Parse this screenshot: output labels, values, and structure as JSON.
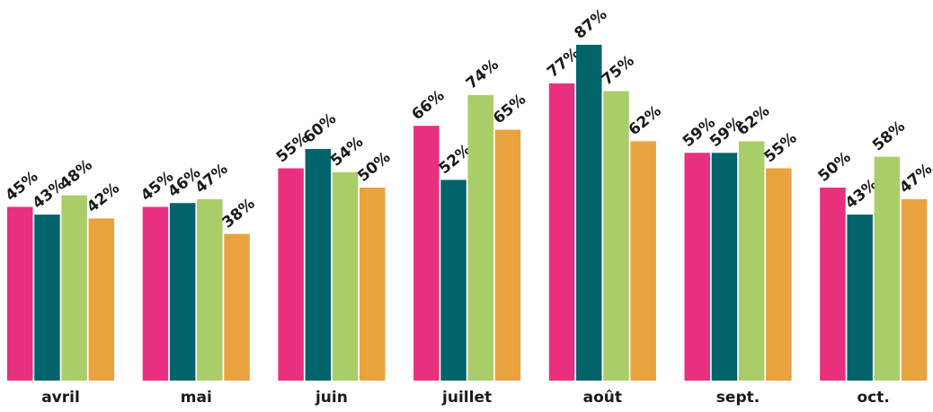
{
  "chart_data": {
    "type": "bar",
    "categories": [
      "avril",
      "mai",
      "juin",
      "juillet",
      "août",
      "sept.",
      "oct."
    ],
    "series": [
      {
        "color": "#E8307F",
        "values": [
          45,
          45,
          55,
          66,
          77,
          59,
          50
        ]
      },
      {
        "color": "#03636A",
        "values": [
          43,
          46,
          60,
          52,
          87,
          59,
          43
        ]
      },
      {
        "color": "#A9CD68",
        "values": [
          48,
          47,
          54,
          74,
          75,
          62,
          58
        ]
      },
      {
        "color": "#E8A23E",
        "values": [
          42,
          38,
          50,
          65,
          62,
          55,
          47
        ]
      }
    ],
    "value_suffix": "%",
    "ylim": [
      0,
      100
    ],
    "grid": false,
    "legend": "none",
    "data_labels": "rotated above each bar"
  }
}
